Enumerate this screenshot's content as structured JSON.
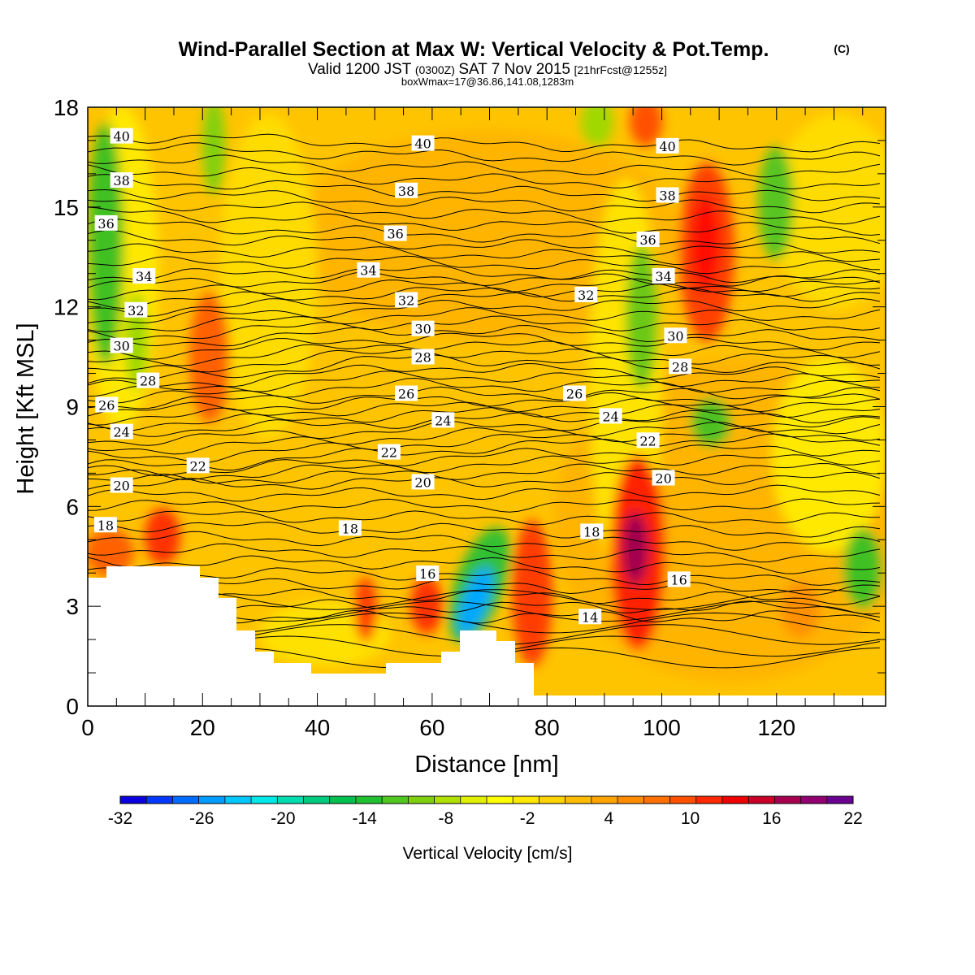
{
  "chart_data": {
    "type": "contour",
    "title": "Wind-Parallel Section at Max W: Vertical Velocity & Pot.Temp.",
    "title_mark": "(C)",
    "subtitle_parts": {
      "a": "Valid 1200 JST",
      "b": "(0300Z)",
      "c": "SAT 7 Nov 2015",
      "d": "[21hrFcst@1255z]"
    },
    "subtitle2": "boxWmax=17@36.86,141.08,1283m",
    "xlabel": "Distance [nm]",
    "ylabel": "Height [Kft MSL]",
    "xlim": [
      0,
      139
    ],
    "ylim": [
      0,
      18
    ],
    "x_ticks": [
      0,
      20,
      40,
      60,
      80,
      100,
      120
    ],
    "y_ticks": [
      0,
      3,
      6,
      9,
      12,
      15,
      18
    ],
    "grid": false,
    "colorbar": {
      "label": "Vertical Velocity [cm/s]",
      "tick_labels": [
        -32,
        -26,
        -20,
        -14,
        -8,
        -2,
        4,
        10,
        16,
        22
      ],
      "levels": [
        -32,
        -30,
        -28,
        -26,
        -24,
        -22,
        -20,
        -18,
        -16,
        -14,
        -12,
        -10,
        -8,
        -6,
        -4,
        -2,
        0,
        2,
        4,
        6,
        8,
        10,
        12,
        14,
        16,
        18,
        20,
        22
      ],
      "colors": [
        "#0a00e0",
        "#0037ff",
        "#006bff",
        "#009cff",
        "#00c8ff",
        "#00e8e8",
        "#00dcb0",
        "#00cc80",
        "#00c050",
        "#20c030",
        "#50c820",
        "#80d010",
        "#b0e000",
        "#e0f000",
        "#ffff00",
        "#ffe800",
        "#ffd200",
        "#ffbc00",
        "#ffa400",
        "#ff8c00",
        "#ff7000",
        "#ff5000",
        "#ff2800",
        "#f00000",
        "#c80028",
        "#a80050",
        "#900070",
        "#6a0090"
      ]
    },
    "isentrope_labels": [
      {
        "x": 5.9,
        "y": 17.13,
        "text": "40"
      },
      {
        "x": 58.4,
        "y": 16.91,
        "text": "40"
      },
      {
        "x": 101,
        "y": 16.83,
        "text": "40"
      },
      {
        "x": 5.9,
        "y": 15.8,
        "text": "38"
      },
      {
        "x": 55.5,
        "y": 15.49,
        "text": "38"
      },
      {
        "x": 101,
        "y": 15.35,
        "text": "38"
      },
      {
        "x": 3.2,
        "y": 14.51,
        "text": "36"
      },
      {
        "x": 53.6,
        "y": 14.2,
        "text": "36"
      },
      {
        "x": 97.6,
        "y": 14.02,
        "text": "36"
      },
      {
        "x": 9.8,
        "y": 12.92,
        "text": "34"
      },
      {
        "x": 48.9,
        "y": 13.1,
        "text": "34"
      },
      {
        "x": 100.3,
        "y": 12.92,
        "text": "34"
      },
      {
        "x": 8.4,
        "y": 11.9,
        "text": "32"
      },
      {
        "x": 55.5,
        "y": 12.2,
        "text": "32"
      },
      {
        "x": 86.8,
        "y": 12.36,
        "text": "32"
      },
      {
        "x": 5.9,
        "y": 10.83,
        "text": "30"
      },
      {
        "x": 58.4,
        "y": 11.34,
        "text": "30"
      },
      {
        "x": 102.4,
        "y": 11.13,
        "text": "30"
      },
      {
        "x": 10.5,
        "y": 9.78,
        "text": "28"
      },
      {
        "x": 58.4,
        "y": 10.49,
        "text": "28"
      },
      {
        "x": 103.2,
        "y": 10.2,
        "text": "28"
      },
      {
        "x": 3.3,
        "y": 9.05,
        "text": "26"
      },
      {
        "x": 55.5,
        "y": 9.39,
        "text": "26"
      },
      {
        "x": 84.8,
        "y": 9.39,
        "text": "26"
      },
      {
        "x": 5.9,
        "y": 8.24,
        "text": "24"
      },
      {
        "x": 61.9,
        "y": 8.59,
        "text": "24"
      },
      {
        "x": 91.1,
        "y": 8.71,
        "text": "24"
      },
      {
        "x": 19.2,
        "y": 7.22,
        "text": "22"
      },
      {
        "x": 52.5,
        "y": 7.63,
        "text": "22"
      },
      {
        "x": 97.6,
        "y": 7.98,
        "text": "22"
      },
      {
        "x": 5.9,
        "y": 6.63,
        "text": "20"
      },
      {
        "x": 58.4,
        "y": 6.73,
        "text": "20"
      },
      {
        "x": 100.3,
        "y": 6.85,
        "text": "20"
      },
      {
        "x": 3.1,
        "y": 5.44,
        "text": "18"
      },
      {
        "x": 45.7,
        "y": 5.34,
        "text": "18"
      },
      {
        "x": 87.8,
        "y": 5.24,
        "text": "18"
      },
      {
        "x": 59.2,
        "y": 3.98,
        "text": "16"
      },
      {
        "x": 103,
        "y": 3.8,
        "text": "16"
      },
      {
        "x": 87.5,
        "y": 2.68,
        "text": "14"
      }
    ]
  }
}
